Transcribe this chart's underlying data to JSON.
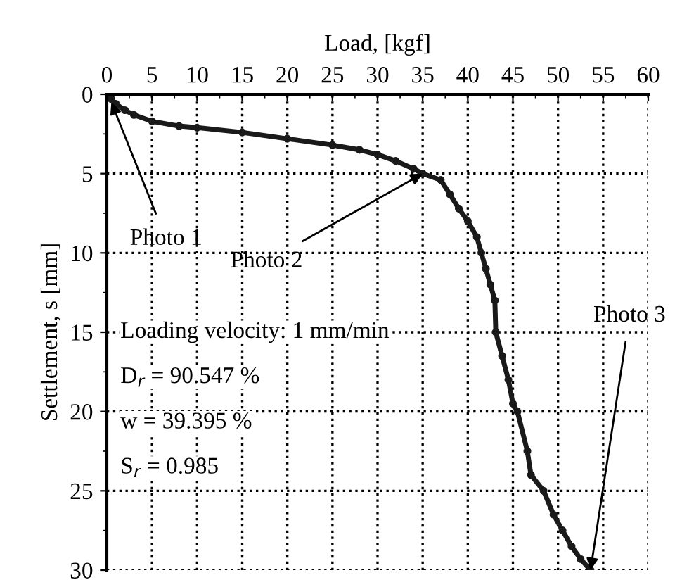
{
  "chart_data": {
    "type": "line",
    "xlabel": "Load, [kgf]",
    "ylabel": "Settlement, s [mm]",
    "x": [
      0,
      0.5,
      1,
      2,
      3,
      5,
      8,
      10,
      15,
      20,
      25,
      28,
      30,
      32,
      34,
      35,
      37,
      38,
      39,
      40,
      41,
      41.5,
      42,
      42.5,
      43,
      43.1,
      43.8,
      44.5,
      45,
      45.5,
      46.6,
      47,
      48.4,
      49.5,
      50.5,
      51.5,
      52.5,
      53.6
    ],
    "series": [
      {
        "color": "#1a1a1a",
        "values": [
          0,
          0.3,
          0.6,
          1.0,
          1.3,
          1.7,
          2.0,
          2.1,
          2.4,
          2.8,
          3.2,
          3.5,
          3.8,
          4.2,
          4.7,
          5.0,
          5.4,
          6.3,
          7.2,
          8.0,
          9.0,
          10.0,
          11.0,
          12.0,
          13.0,
          15.0,
          16.5,
          18.0,
          19.5,
          20.0,
          22.5,
          24.0,
          25.0,
          26.5,
          27.5,
          28.5,
          29.3,
          30.0
        ]
      }
    ],
    "xlim": [
      0,
      60
    ],
    "xticks": [
      0,
      5,
      10,
      15,
      20,
      25,
      30,
      35,
      40,
      45,
      50,
      55,
      60
    ],
    "ylim": [
      30,
      0
    ],
    "yticks": [
      0,
      5,
      10,
      15,
      20,
      25,
      30
    ],
    "grid": true,
    "marker": "circle",
    "line_style": "solid",
    "annotations": [
      {
        "text": "Photo 1",
        "x": 0.5,
        "y": 0.5
      },
      {
        "text": "Photo 2",
        "x": 35,
        "y": 5
      },
      {
        "text": "Photo 3",
        "x": 53.6,
        "y": 30
      },
      "Loading velocity: 1 mm/min",
      "D$_{r}$ = 90.547 %",
      "w = 39.395 %",
      "S$_{r}$ = 0.985"
    ]
  }
}
